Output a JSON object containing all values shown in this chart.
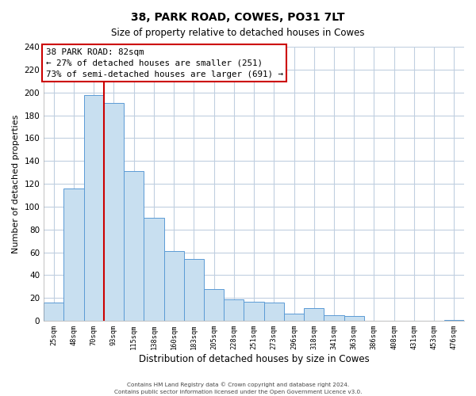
{
  "title": "38, PARK ROAD, COWES, PO31 7LT",
  "subtitle": "Size of property relative to detached houses in Cowes",
  "xlabel": "Distribution of detached houses by size in Cowes",
  "ylabel": "Number of detached properties",
  "bin_labels": [
    "25sqm",
    "48sqm",
    "70sqm",
    "93sqm",
    "115sqm",
    "138sqm",
    "160sqm",
    "183sqm",
    "205sqm",
    "228sqm",
    "251sqm",
    "273sqm",
    "296sqm",
    "318sqm",
    "341sqm",
    "363sqm",
    "386sqm",
    "408sqm",
    "431sqm",
    "453sqm",
    "476sqm"
  ],
  "bar_heights": [
    16,
    116,
    198,
    191,
    131,
    90,
    61,
    54,
    28,
    19,
    17,
    16,
    6,
    11,
    5,
    4,
    0,
    0,
    0,
    0,
    1
  ],
  "bar_color": "#c8dff0",
  "bar_edge_color": "#5b9bd5",
  "vline_index": 2.5,
  "vline_color": "#cc0000",
  "annotation_title": "38 PARK ROAD: 82sqm",
  "annotation_line1": "← 27% of detached houses are smaller (251)",
  "annotation_line2": "73% of semi-detached houses are larger (691) →",
  "annotation_box_facecolor": "#ffffff",
  "annotation_box_edgecolor": "#cc0000",
  "ylim": [
    0,
    240
  ],
  "yticks": [
    0,
    20,
    40,
    60,
    80,
    100,
    120,
    140,
    160,
    180,
    200,
    220,
    240
  ],
  "background_color": "#ffffff",
  "grid_color": "#c0cfe0",
  "footer_line1": "Contains HM Land Registry data © Crown copyright and database right 2024.",
  "footer_line2": "Contains public sector information licensed under the Open Government Licence v3.0."
}
